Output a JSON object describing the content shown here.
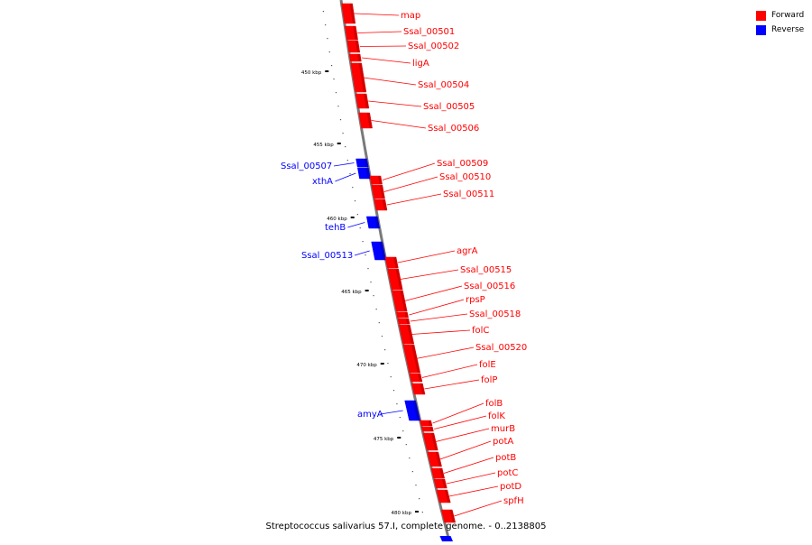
{
  "colors": {
    "forward": "#ff0000",
    "reverse": "#0000ff",
    "backbone": "#7a7a7a"
  },
  "legend": [
    {
      "label": "Forward",
      "strand": "forward"
    },
    {
      "label": "Reverse",
      "strand": "reverse"
    }
  ],
  "genome_label": "Streptococcus salivarius 57.I, complete genome. - 0..2138805",
  "scale_labels": [
    "450 kbp",
    "455 kbp",
    "460 kbp",
    "465 kbp",
    "470 kbp",
    "475 kbp",
    "480 kbp"
  ],
  "genes": [
    {
      "name": "map",
      "strand": "forward"
    },
    {
      "name": "Ssal_00501",
      "strand": "forward"
    },
    {
      "name": "Ssal_00502",
      "strand": "forward"
    },
    {
      "name": "ligA",
      "strand": "forward"
    },
    {
      "name": "Ssal_00504",
      "strand": "forward"
    },
    {
      "name": "Ssal_00505",
      "strand": "forward"
    },
    {
      "name": "Ssal_00506",
      "strand": "forward"
    },
    {
      "name": "Ssal_00507",
      "strand": "reverse"
    },
    {
      "name": "xthA",
      "strand": "reverse"
    },
    {
      "name": "Ssal_00509",
      "strand": "forward"
    },
    {
      "name": "Ssal_00510",
      "strand": "forward"
    },
    {
      "name": "Ssal_00511",
      "strand": "forward"
    },
    {
      "name": "tehB",
      "strand": "reverse"
    },
    {
      "name": "Ssal_00513",
      "strand": "reverse"
    },
    {
      "name": "agrA",
      "strand": "forward"
    },
    {
      "name": "Ssal_00515",
      "strand": "forward"
    },
    {
      "name": "Ssal_00516",
      "strand": "forward"
    },
    {
      "name": "rpsP",
      "strand": "forward"
    },
    {
      "name": "Ssal_00518",
      "strand": "forward"
    },
    {
      "name": "folC",
      "strand": "forward"
    },
    {
      "name": "Ssal_00520",
      "strand": "forward"
    },
    {
      "name": "folE",
      "strand": "forward"
    },
    {
      "name": "folP",
      "strand": "forward"
    },
    {
      "name": "amyA",
      "strand": "reverse"
    },
    {
      "name": "folB",
      "strand": "forward"
    },
    {
      "name": "folK",
      "strand": "forward"
    },
    {
      "name": "murB",
      "strand": "forward"
    },
    {
      "name": "potA",
      "strand": "forward"
    },
    {
      "name": "potB",
      "strand": "forward"
    },
    {
      "name": "potC",
      "strand": "forward"
    },
    {
      "name": "potD",
      "strand": "forward"
    },
    {
      "name": "spfH",
      "strand": "forward"
    }
  ]
}
